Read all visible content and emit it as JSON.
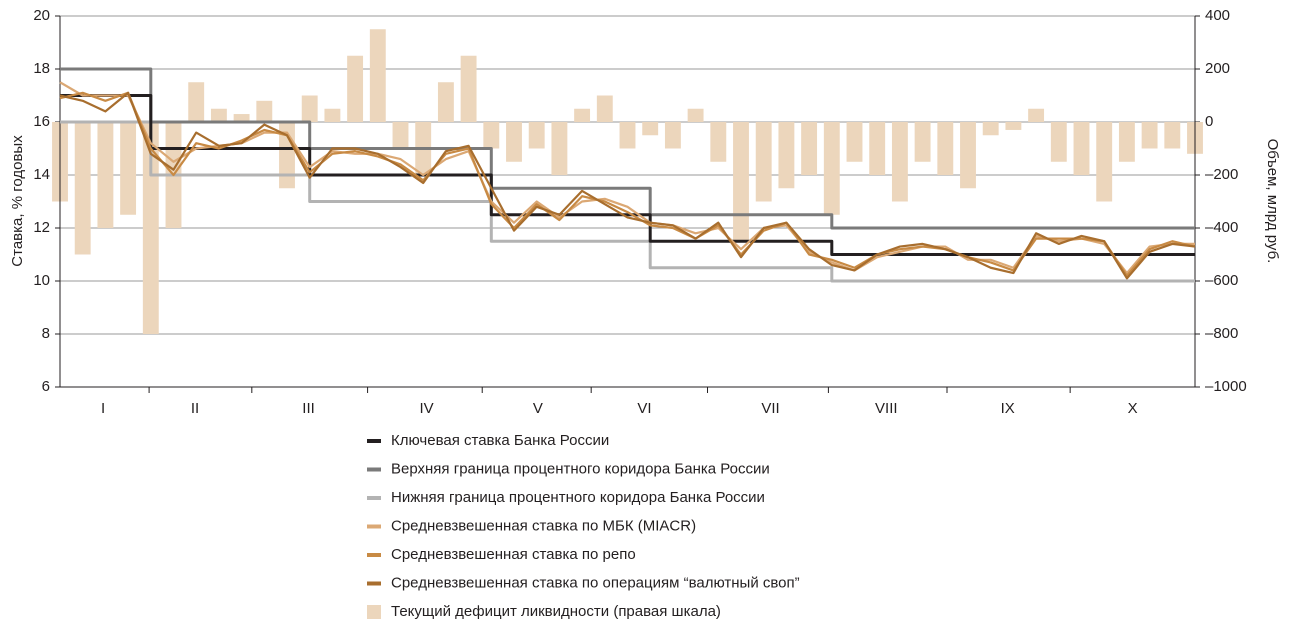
{
  "chart_data": {
    "type": "line",
    "ylabel": "Ставка, % годовых",
    "y2label": "Объем, млрд руб.",
    "x": [
      0,
      2,
      4,
      6,
      8,
      10,
      12,
      14,
      16,
      18,
      20,
      22,
      24,
      26,
      28,
      30,
      32,
      34,
      36,
      38,
      40,
      42,
      44,
      46,
      48,
      50,
      52,
      54,
      56,
      58,
      60,
      62,
      64,
      66,
      68,
      70,
      72,
      74,
      76,
      78,
      80,
      82,
      84,
      86,
      88,
      90,
      92,
      94,
      96,
      98,
      100
    ],
    "xlim": [
      0,
      100
    ],
    "xticks": [
      {
        "value": 3.8,
        "label": "I"
      },
      {
        "value": 11.9,
        "label": "II"
      },
      {
        "value": 21.9,
        "label": "III"
      },
      {
        "value": 32.3,
        "label": "IV"
      },
      {
        "value": 42.1,
        "label": "V"
      },
      {
        "value": 51.5,
        "label": "VI"
      },
      {
        "value": 62.6,
        "label": "VII"
      },
      {
        "value": 72.8,
        "label": "VIII"
      },
      {
        "value": 83.5,
        "label": "IX"
      },
      {
        "value": 94.5,
        "label": "X"
      }
    ],
    "ylim": [
      6,
      20
    ],
    "yticks": [
      6,
      8,
      10,
      12,
      14,
      16,
      18,
      20
    ],
    "y2lim": [
      -1000,
      400
    ],
    "y2ticks": [
      {
        "value": -1000,
        "label": "–1000"
      },
      {
        "value": -800,
        "label": "–800"
      },
      {
        "value": -600,
        "label": "–600"
      },
      {
        "value": -400,
        "label": "–400"
      },
      {
        "value": -200,
        "label": "–200"
      },
      0,
      200,
      400
    ],
    "grid": true,
    "series": [
      {
        "name": "Ключевая ставка Банка России",
        "color": "#231f20",
        "step": "post",
        "values": [
          17,
          17,
          17,
          17,
          15,
          15,
          15,
          15,
          15,
          15,
          15,
          14,
          14,
          14,
          14,
          14,
          14,
          14,
          14,
          12.5,
          12.5,
          12.5,
          12.5,
          12.5,
          12.5,
          12.5,
          11.5,
          11.5,
          11.5,
          11.5,
          11.5,
          11.5,
          11.5,
          11.5,
          11,
          11,
          11,
          11,
          11,
          11,
          11,
          11,
          11,
          11,
          11,
          11,
          11,
          11,
          11,
          11,
          11
        ]
      },
      {
        "name": "Верхняя граница процентного коридора Банка России",
        "color": "#7a7a7a",
        "step": "post",
        "values": [
          18,
          18,
          18,
          18,
          16,
          16,
          16,
          16,
          16,
          16,
          16,
          15,
          15,
          15,
          15,
          15,
          15,
          15,
          15,
          13.5,
          13.5,
          13.5,
          13.5,
          13.5,
          13.5,
          13.5,
          12.5,
          12.5,
          12.5,
          12.5,
          12.5,
          12.5,
          12.5,
          12.5,
          12,
          12,
          12,
          12,
          12,
          12,
          12,
          12,
          12,
          12,
          12,
          12,
          12,
          12,
          12,
          12,
          12
        ]
      },
      {
        "name": "Нижняя граница процентного коридора Банка России",
        "color": "#b3b3b3",
        "step": "post",
        "values": [
          16,
          16,
          16,
          16,
          14,
          14,
          14,
          14,
          14,
          14,
          14,
          13,
          13,
          13,
          13,
          13,
          13,
          13,
          13,
          11.5,
          11.5,
          11.5,
          11.5,
          11.5,
          11.5,
          11.5,
          10.5,
          10.5,
          10.5,
          10.5,
          10.5,
          10.5,
          10.5,
          10.5,
          10,
          10,
          10,
          10,
          10,
          10,
          10,
          10,
          10,
          10,
          10,
          10,
          10,
          10,
          10,
          10,
          10
        ]
      },
      {
        "name": "Средневзвешенная ставка по МБК (MIACR)",
        "color": "#dba874",
        "values": [
          17.5,
          17.0,
          17.0,
          17.0,
          15.2,
          14.5,
          15.0,
          15.1,
          15.2,
          15.6,
          15.6,
          14.3,
          14.9,
          14.8,
          14.8,
          14.6,
          14.0,
          14.6,
          14.9,
          13.0,
          12.2,
          13.0,
          12.4,
          13.0,
          13.1,
          12.8,
          12.2,
          12.1,
          11.8,
          12.0,
          11.2,
          12.0,
          12.1,
          11.1,
          10.7,
          10.4,
          10.9,
          11.1,
          11.3,
          11.3,
          10.8,
          10.8,
          10.5,
          11.7,
          11.5,
          11.6,
          11.4,
          10.3,
          11.3,
          11.4,
          11.4
        ]
      },
      {
        "name": "Средневзвешенная ставка по репо",
        "color": "#c88a44",
        "values": [
          16.9,
          17.1,
          16.8,
          17.1,
          15.0,
          14.0,
          15.2,
          15.0,
          15.3,
          15.7,
          15.5,
          14.1,
          14.8,
          14.9,
          14.7,
          14.4,
          13.8,
          14.8,
          15.0,
          12.9,
          12.0,
          12.9,
          12.3,
          13.2,
          13.0,
          12.6,
          12.1,
          12.0,
          11.6,
          12.1,
          11.0,
          11.9,
          12.2,
          11.0,
          10.8,
          10.5,
          11.0,
          11.2,
          11.3,
          11.2,
          10.9,
          10.7,
          10.4,
          11.6,
          11.6,
          11.6,
          11.5,
          10.2,
          11.2,
          11.5,
          11.3
        ]
      },
      {
        "name": "Средневзвешенная ставка по операциям “валютный своп”",
        "color": "#a86e2e",
        "values": [
          17.0,
          16.8,
          16.4,
          17.1,
          14.8,
          14.2,
          15.6,
          15.1,
          15.2,
          15.9,
          15.5,
          13.9,
          15.0,
          15.0,
          14.8,
          14.3,
          13.7,
          14.9,
          15.1,
          13.5,
          11.9,
          12.8,
          12.5,
          13.4,
          12.9,
          12.4,
          12.2,
          12.1,
          11.6,
          12.2,
          10.9,
          12.0,
          12.2,
          11.2,
          10.6,
          10.4,
          11.0,
          11.3,
          11.4,
          11.2,
          10.9,
          10.5,
          10.3,
          11.8,
          11.4,
          11.7,
          11.5,
          10.1,
          11.1,
          11.4,
          11.3
        ]
      },
      {
        "name": "Текущий дефицит ликвидности (правая шкала)",
        "color": "#ecd6bc",
        "type": "bar",
        "axis": "y2",
        "values": [
          -300,
          -500,
          -400,
          -350,
          -800,
          -400,
          150,
          50,
          30,
          80,
          -250,
          100,
          50,
          250,
          350,
          -100,
          -200,
          150,
          250,
          -100,
          -150,
          -100,
          -200,
          50,
          100,
          -100,
          -50,
          -100,
          50,
          -150,
          -450,
          -300,
          -250,
          -200,
          -350,
          -150,
          -200,
          -300,
          -150,
          -200,
          -250,
          -50,
          -30,
          50,
          -150,
          -200,
          -300,
          -150,
          -100,
          -100,
          -120
        ]
      }
    ]
  }
}
